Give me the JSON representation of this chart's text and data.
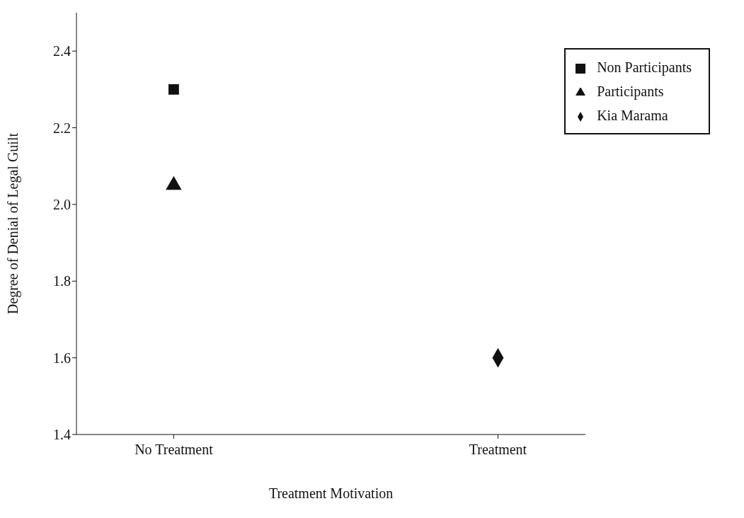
{
  "chart_data": {
    "type": "scatter",
    "xlabel": "Treatment Motivation",
    "ylabel": "Degree of Denial of Legal Guilt",
    "categories": [
      "No Treatment",
      "Treatment"
    ],
    "series": [
      {
        "name": "Non Participants",
        "color": "#111111",
        "marker": "square",
        "values": [
          2.3,
          null
        ]
      },
      {
        "name": "Participants",
        "color": "#111111",
        "marker": "triangle",
        "values": [
          2.05,
          null
        ]
      },
      {
        "name": "Kia Marama",
        "color": "#111111",
        "marker": "diamond",
        "values": [
          null,
          1.6
        ]
      }
    ],
    "ylim": [
      1.4,
      2.5
    ],
    "yticks": [
      {
        "value": 1.4,
        "label": "1.4"
      },
      {
        "value": 1.6,
        "label": "1.6"
      },
      {
        "value": 1.8,
        "label": "1.8"
      },
      {
        "value": 2.0,
        "label": "2.0"
      },
      {
        "value": 2.2,
        "label": "2.2"
      },
      {
        "value": 2.4,
        "label": "2.4"
      }
    ],
    "grid": false,
    "legend": "top right"
  }
}
